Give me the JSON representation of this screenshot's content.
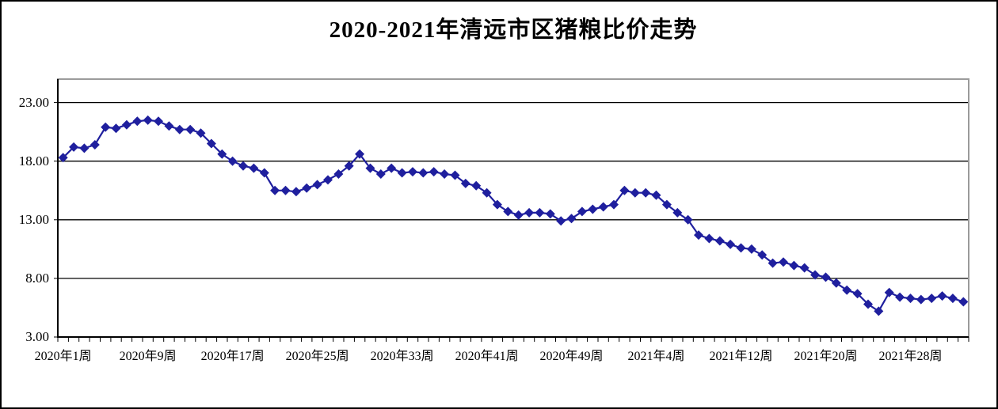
{
  "title": "2020-2021年清远市区猪粮比价走势",
  "chart_data": {
    "type": "line",
    "title": "2020-2021年清远市区猪粮比价走势",
    "marker": "diamond",
    "grid": "horizontal-only",
    "legend_visible": false,
    "x_axis": {
      "tick_labels": [
        "2020年1周",
        "2020年9周",
        "2020年17周",
        "2020年25周",
        "2020年33周",
        "2020年41周",
        "2020年49周",
        "2021年4周",
        "2021年12周",
        "2021年20周",
        "2021年28周"
      ],
      "tick_label_indices": [
        0,
        8,
        16,
        24,
        32,
        40,
        48,
        56,
        64,
        72,
        80
      ],
      "n_categories": 86
    },
    "y_axis": {
      "tick_labels": [
        "23.00",
        "18.00",
        "13.00",
        "8.00",
        "3.00"
      ],
      "tick_values": [
        23,
        18,
        13,
        8,
        3
      ],
      "range": [
        3,
        25
      ]
    },
    "gridline_values": [
      8,
      13,
      18,
      23
    ],
    "values": [
      18.3,
      19.2,
      19.1,
      19.4,
      20.9,
      20.8,
      21.1,
      21.4,
      21.5,
      21.4,
      21.0,
      20.7,
      20.7,
      20.4,
      19.5,
      18.6,
      18.0,
      17.6,
      17.4,
      17.0,
      15.5,
      15.5,
      15.4,
      15.7,
      16.0,
      16.4,
      16.9,
      17.6,
      18.6,
      17.4,
      16.9,
      17.4,
      17.0,
      17.1,
      17.0,
      17.1,
      16.9,
      16.8,
      16.1,
      15.9,
      15.3,
      14.3,
      13.7,
      13.4,
      13.6,
      13.6,
      13.5,
      12.9,
      13.1,
      13.7,
      13.9,
      14.1,
      14.3,
      15.5,
      15.3,
      15.3,
      15.1,
      14.3,
      13.6,
      13.0,
      11.7,
      11.4,
      11.2,
      10.9,
      10.6,
      10.5,
      10.0,
      9.3,
      9.4,
      9.1,
      8.9,
      8.3,
      8.1,
      7.6,
      7.0,
      6.7,
      5.8,
      5.2,
      6.8,
      6.4,
      6.3,
      6.2,
      6.3,
      6.5,
      6.3,
      6.0
    ],
    "colors": {
      "series": "#1F1F9E",
      "gridline": "#000000",
      "axis": "#000000",
      "plot_border": "#9B9B9B",
      "background": "#FFFFFF",
      "outer_border": "#000000",
      "text": "#000000"
    }
  }
}
